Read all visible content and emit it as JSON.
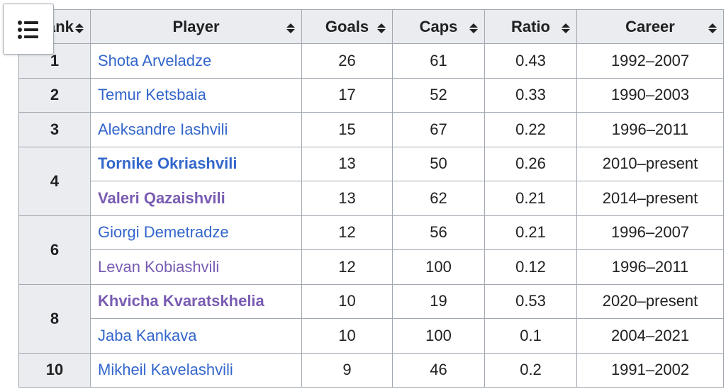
{
  "table": {
    "headers": [
      "Rank",
      "Player",
      "Goals",
      "Caps",
      "Ratio",
      "Career"
    ],
    "rows": [
      {
        "rank": 1,
        "player": "Shota Arveladze",
        "color": "#3366cc",
        "bold": false,
        "goals": 26,
        "caps": 61,
        "ratio": 0.43,
        "career": "1992–2007"
      },
      {
        "rank": 2,
        "player": "Temur Ketsbaia",
        "color": "#3366cc",
        "bold": false,
        "goals": 17,
        "caps": 52,
        "ratio": 0.33,
        "career": "1990–2003"
      },
      {
        "rank": 3,
        "player": "Aleksandre Iashvili",
        "color": "#3366cc",
        "bold": false,
        "goals": 15,
        "caps": 67,
        "ratio": 0.22,
        "career": "1996–2011"
      },
      {
        "rank": 4,
        "player": "Tornike Okriashvili",
        "color": "#3366cc",
        "bold": true,
        "goals": 13,
        "caps": 50,
        "ratio": 0.26,
        "career": "2010–present"
      },
      {
        "rank": null,
        "player": "Valeri Qazaishvili",
        "color": "#795cb2",
        "bold": true,
        "goals": 13,
        "caps": 62,
        "ratio": 0.21,
        "career": "2014–present"
      },
      {
        "rank": 6,
        "player": "Giorgi Demetradze",
        "color": "#3366cc",
        "bold": false,
        "goals": 12,
        "caps": 56,
        "ratio": 0.21,
        "career": "1996–2007"
      },
      {
        "rank": null,
        "player": "Levan Kobiashvili",
        "color": "#795cb2",
        "bold": false,
        "goals": 12,
        "caps": 100,
        "ratio": 0.12,
        "career": "1996–2011"
      },
      {
        "rank": 8,
        "player": "Khvicha Kvaratskhelia",
        "color": "#795cb2",
        "bold": true,
        "goals": 10,
        "caps": 19,
        "ratio": 0.53,
        "career": "2020–present"
      },
      {
        "rank": null,
        "player": "Jaba Kankava",
        "color": "#3366cc",
        "bold": false,
        "goals": 10,
        "caps": 100,
        "ratio": 0.1,
        "career": "2004–2021"
      },
      {
        "rank": 10,
        "player": "Mikheil Kavelashvili",
        "color": "#3366cc",
        "bold": false,
        "goals": 9,
        "caps": 46,
        "ratio": 0.2,
        "career": "1991–2002"
      }
    ]
  }
}
